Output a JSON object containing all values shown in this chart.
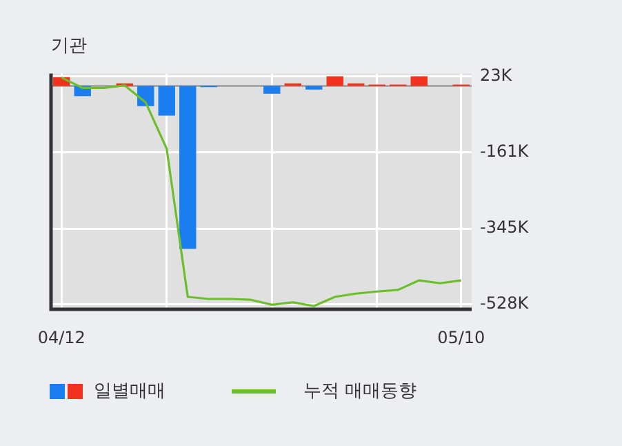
{
  "chart_data": {
    "type": "bar",
    "title": "기관",
    "categories": [
      "04/12",
      null,
      null,
      null,
      null,
      null,
      null,
      null,
      null,
      null,
      null,
      null,
      null,
      null,
      null,
      null,
      null,
      null,
      null,
      "05/10"
    ],
    "series": [
      {
        "name": "일별매매",
        "values": [
          21,
          -25,
          0,
          6,
          -49,
          -72,
          -394,
          -3,
          0,
          0,
          -19,
          6,
          -9,
          23,
          6,
          3,
          3,
          23,
          0,
          3
        ],
        "colors": [
          "#f0321e",
          "#1a7ef0",
          "#f0321e",
          "#f0321e",
          "#1a7ef0",
          "#1a7ef0",
          "#1a7ef0",
          "#1a7ef0",
          "#f0321e",
          "#f0321e",
          "#1a7ef0",
          "#f0321e",
          "#1a7ef0",
          "#f0321e",
          "#f0321e",
          "#f0321e",
          "#f0321e",
          "#f0321e",
          "#f0321e",
          "#f0321e"
        ]
      },
      {
        "name": "누적 매매동향",
        "type": "line",
        "color": "#6cbf2a",
        "values": [
          20,
          -5,
          -5,
          1,
          -40,
          -152,
          -510,
          -515,
          -515,
          -517,
          -529,
          -523,
          -532,
          -510,
          -502,
          -497,
          -493,
          -470,
          -477,
          -470
        ]
      }
    ],
    "ylim": [
      -540,
      30
    ],
    "yticks": [
      {
        "value": 23,
        "label": "23K"
      },
      {
        "value": -161,
        "label": "-161K"
      },
      {
        "value": -345,
        "label": "-345K"
      },
      {
        "value": -528,
        "label": "-528K"
      }
    ],
    "grid": true,
    "legend": "bottom",
    "marker": "none",
    "line_style": "solid"
  }
}
